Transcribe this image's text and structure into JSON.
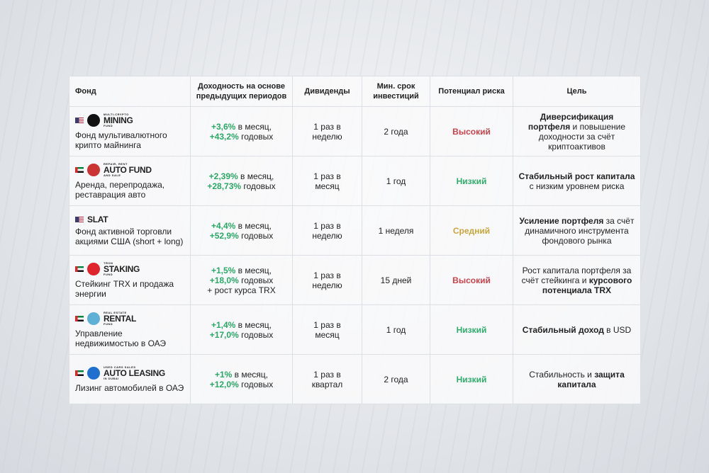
{
  "table": {
    "columns": [
      "Фонд",
      "Доходность на основе предыдущих периодов",
      "Дивиденды",
      "Мин. срок инвестиций",
      "Потенциал риска",
      "Цель"
    ],
    "rows": [
      {
        "flag": "us",
        "icon": "bitcoin",
        "logo": {
          "top": "MULTI-CRYPTO",
          "name": "MINING",
          "bottom": "FUND"
        },
        "description": "Фонд мультивалютного крипто майнинга",
        "returns": [
          [
            {
              "text": "+3,6%",
              "bold": true
            },
            {
              "text": " в месяц,",
              "bold": false
            }
          ],
          [
            {
              "text": "+43,2%",
              "bold": true
            },
            {
              "text": " годовых",
              "bold": false
            }
          ]
        ],
        "dividends": "1 раз в неделю",
        "term": "2 года",
        "risk": {
          "text": "Высокий",
          "color": "#c8434c"
        },
        "goal": [
          {
            "text": "Диверсификация портфеля",
            "bold": true
          },
          {
            "text": " и повышение доходности за счёт криптоактивов",
            "bold": false
          }
        ]
      },
      {
        "flag": "ae",
        "icon": "car",
        "logo": {
          "top": "REPAIR, RENT",
          "name": "AUTO FUND",
          "bottom": "AND SALE"
        },
        "description": "Аренда, перепродажа, реставрация авто",
        "returns": [
          [
            {
              "text": "+2,39%",
              "bold": true
            },
            {
              "text": " в месяц,",
              "bold": false
            }
          ],
          [
            {
              "text": "+28,73%",
              "bold": true
            },
            {
              "text": " годовых",
              "bold": false
            }
          ]
        ],
        "dividends": "1 раз в месяц",
        "term": "1 год",
        "risk": {
          "text": "Низкий",
          "color": "#2fae6b"
        },
        "goal": [
          {
            "text": "Стабильный рост капитала",
            "bold": true
          },
          {
            "text": " с низким уровнем риска",
            "bold": false
          }
        ]
      },
      {
        "flag": "us",
        "icon": "none",
        "logo": {
          "name": "SLAT"
        },
        "description": "Фонд активной торговли акциями США (short + long)",
        "returns": [
          [
            {
              "text": "+4,4%",
              "bold": true
            },
            {
              "text": " в месяц,",
              "bold": false
            }
          ],
          [
            {
              "text": "+52,9%",
              "bold": true
            },
            {
              "text": " годовых",
              "bold": false
            }
          ]
        ],
        "dividends": "1 раз в неделю",
        "term": "1 неделя",
        "risk": {
          "text": "Средний",
          "color": "#c9a63d"
        },
        "goal": [
          {
            "text": "Усиление портфеля",
            "bold": true
          },
          {
            "text": " за счёт динамичного инструмента фондового рынка",
            "bold": false
          }
        ]
      },
      {
        "flag": "ae",
        "icon": "tron",
        "logo": {
          "top": "TRON",
          "name": "STAKING",
          "bottom": "FUND"
        },
        "description": "Стейкинг TRX и продажа энергии",
        "returns": [
          [
            {
              "text": "+1,5%",
              "bold": true
            },
            {
              "text": " в месяц,",
              "bold": false
            }
          ],
          [
            {
              "text": "+18,0%",
              "bold": true
            },
            {
              "text": " годовых",
              "bold": false
            }
          ],
          [
            {
              "text": "+ рост курса TRX",
              "bold": false
            }
          ]
        ],
        "dividends": "1 раз в неделю",
        "term": "15 дней",
        "risk": {
          "text": "Высокий",
          "color": "#c8434c"
        },
        "goal": [
          {
            "text": "Рост капитала портфеля за счёт стейкинга и ",
            "bold": false
          },
          {
            "text": "курсового потенциала TRX",
            "bold": true
          }
        ]
      },
      {
        "flag": "ae",
        "icon": "rental",
        "logo": {
          "top": "REAL ESTATE",
          "name": "RENTAL",
          "bottom": "FUND"
        },
        "description": "Управление недвижимостью в ОАЭ",
        "returns": [
          [
            {
              "text": "+1,4%",
              "bold": true
            },
            {
              "text": " в месяц,",
              "bold": false
            }
          ],
          [
            {
              "text": "+17,0%",
              "bold": true
            },
            {
              "text": " годовых",
              "bold": false
            }
          ]
        ],
        "dividends": "1 раз в месяц",
        "term": "1 год",
        "risk": {
          "text": "Низкий",
          "color": "#2fae6b"
        },
        "goal": [
          {
            "text": "Стабильный доход",
            "bold": true
          },
          {
            "text": " в USD",
            "bold": false
          }
        ]
      },
      {
        "flag": "ae",
        "icon": "autodepo",
        "logo": {
          "top": "USED CARS SALES",
          "name": "AUTO LEASING",
          "bottom": "IN DUBAI"
        },
        "description": "Лизинг автомобилей в ОАЭ",
        "returns": [
          [
            {
              "text": "+1%",
              "bold": true
            },
            {
              "text": " в месяц,",
              "bold": false
            }
          ],
          [
            {
              "text": "+12,0%",
              "bold": true
            },
            {
              "text": " годовых",
              "bold": false
            }
          ]
        ],
        "dividends": "1 раз в квартал",
        "term": "2 года",
        "risk": {
          "text": "Низкий",
          "color": "#2fae6b"
        },
        "goal": [
          {
            "text": "Стабильность",
            "bold": false
          },
          {
            "text": " и ",
            "bold": false
          },
          {
            "text": "защита капитала",
            "bold": true
          }
        ]
      }
    ]
  }
}
